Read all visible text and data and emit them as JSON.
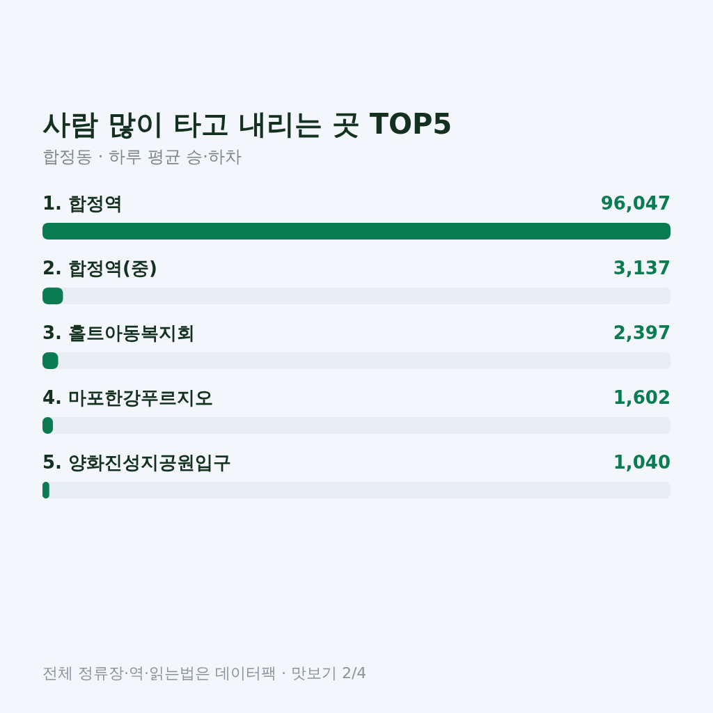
{
  "chart_data": {
    "type": "bar",
    "orientation": "horizontal",
    "title": "사람 많이 타고 내리는 곳 TOP5",
    "subtitle": "합정동 · 하루 평균 승·하차",
    "categories": [
      "1. 합정역",
      "2. 합정역(중)",
      "3. 홀트아동복지회",
      "4. 마포한강푸르지오",
      "5. 양화진성지공원입구"
    ],
    "values": [
      96047,
      3137,
      2397,
      1602,
      1040
    ],
    "value_labels": [
      "96,047",
      "3,137",
      "2,397",
      "1,602",
      "1,040"
    ],
    "color": "#0b7c52",
    "tick_labels": "y",
    "annotations": [
      "전체 정류장·역·읽는법은 데이터팩 · 맛보기 2/4"
    ]
  }
}
